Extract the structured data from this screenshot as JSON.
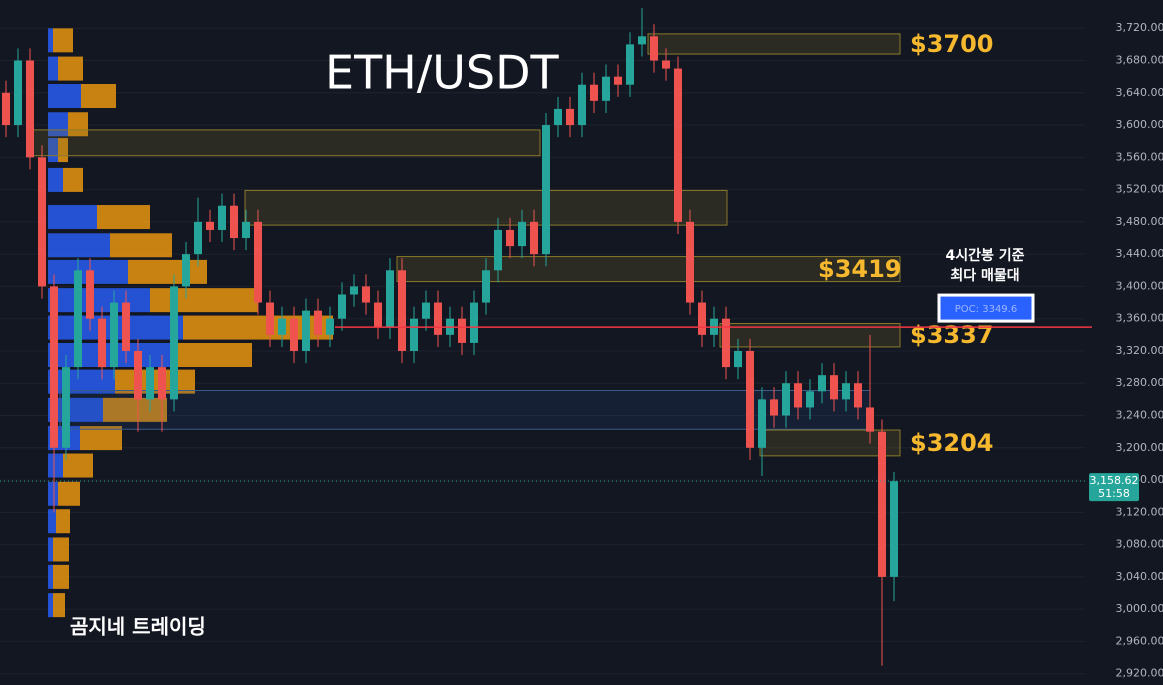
{
  "chart_data": {
    "type": "candlestick",
    "title": "ETH/USDT",
    "watermark": "곰지네 트레이딩",
    "up_color": "#26a69a",
    "down_color": "#ef5350",
    "open": [
      3640,
      3600,
      3680,
      3560,
      3400,
      3200,
      3300,
      3420,
      3360,
      3300,
      3380,
      3320,
      3260,
      3300,
      3260,
      3400,
      3440,
      3480,
      3470,
      3500,
      3460,
      3480,
      3380,
      3340,
      3360,
      3320,
      3370,
      3340,
      3360,
      3390,
      3400,
      3380,
      3350,
      3420,
      3320,
      3360,
      3380,
      3340,
      3360,
      3330,
      3380,
      3420,
      3470,
      3450,
      3480,
      3440,
      3600,
      3620,
      3600,
      3650,
      3630,
      3660,
      3650,
      3700,
      3710,
      3680,
      3670,
      3480,
      3380,
      3340,
      3360,
      3300,
      3320,
      3200,
      3260,
      3240,
      3280,
      3250,
      3270,
      3290,
      3260,
      3280,
      3250,
      3220,
      3040
    ],
    "high": [
      3655,
      3695,
      3695,
      3575,
      3415,
      3315,
      3435,
      3435,
      3375,
      3395,
      3395,
      3335,
      3315,
      3315,
      3415,
      3455,
      3510,
      3495,
      3515,
      3515,
      3495,
      3495,
      3395,
      3375,
      3375,
      3385,
      3385,
      3375,
      3405,
      3415,
      3415,
      3395,
      3435,
      3435,
      3375,
      3395,
      3395,
      3375,
      3375,
      3395,
      3435,
      3485,
      3485,
      3495,
      3495,
      3615,
      3635,
      3635,
      3665,
      3665,
      3675,
      3675,
      3715,
      3745,
      3725,
      3695,
      3685,
      3495,
      3395,
      3375,
      3375,
      3335,
      3335,
      3275,
      3275,
      3295,
      3295,
      3285,
      3305,
      3305,
      3295,
      3295,
      3340,
      3235,
      3170
    ],
    "low": [
      3585,
      3585,
      3545,
      3385,
      3120,
      3185,
      3285,
      3345,
      3285,
      3285,
      3305,
      3220,
      3245,
      3220,
      3245,
      3385,
      3425,
      3455,
      3455,
      3445,
      3445,
      3365,
      3325,
      3325,
      3305,
      3305,
      3325,
      3325,
      3345,
      3375,
      3365,
      3335,
      3335,
      3305,
      3305,
      3345,
      3325,
      3325,
      3315,
      3315,
      3365,
      3405,
      3435,
      3435,
      3425,
      3425,
      3585,
      3585,
      3585,
      3615,
      3615,
      3635,
      3635,
      3685,
      3665,
      3655,
      3465,
      3365,
      3325,
      3325,
      3285,
      3285,
      3185,
      3165,
      3225,
      3225,
      3235,
      3235,
      3255,
      3245,
      3245,
      3235,
      3205,
      2930,
      3010
    ],
    "close": [
      3600,
      3680,
      3560,
      3400,
      3200,
      3300,
      3420,
      3360,
      3300,
      3380,
      3320,
      3260,
      3300,
      3260,
      3400,
      3440,
      3480,
      3470,
      3500,
      3460,
      3480,
      3380,
      3340,
      3360,
      3320,
      3370,
      3340,
      3360,
      3390,
      3400,
      3380,
      3350,
      3420,
      3320,
      3360,
      3380,
      3340,
      3360,
      3330,
      3380,
      3420,
      3470,
      3450,
      3480,
      3440,
      3600,
      3620,
      3600,
      3650,
      3630,
      3660,
      3650,
      3700,
      3710,
      3680,
      3670,
      3480,
      3380,
      3340,
      3360,
      3300,
      3320,
      3200,
      3260,
      3240,
      3280,
      3250,
      3270,
      3290,
      3260,
      3280,
      3250,
      3220,
      3040,
      3158.62
    ],
    "ylim": [
      2906,
      3755
    ],
    "yticks": [
      {
        "value": 2920,
        "label": "2,920.00"
      },
      {
        "value": 2960,
        "label": "2,960.00"
      },
      {
        "value": 3000,
        "label": "3,000.00"
      },
      {
        "value": 3040,
        "label": "3,040.00"
      },
      {
        "value": 3080,
        "label": "3,080.00"
      },
      {
        "value": 3120,
        "label": "3,120.00"
      },
      {
        "value": 3160,
        "label": "3,160.00"
      },
      {
        "value": 3200,
        "label": "3,200.00"
      },
      {
        "value": 3240,
        "label": "3,240.00"
      },
      {
        "value": 3280,
        "label": "3,280.00"
      },
      {
        "value": 3320,
        "label": "3,320.00"
      },
      {
        "value": 3360,
        "label": "3,360.00"
      },
      {
        "value": 3400,
        "label": "3,400.00"
      },
      {
        "value": 3440,
        "label": "3,440.00"
      },
      {
        "value": 3480,
        "label": "3,480.00"
      },
      {
        "value": 3520,
        "label": "3,520.00"
      },
      {
        "value": 3560,
        "label": "3,560.00"
      },
      {
        "value": 3600,
        "label": "3,600.00"
      },
      {
        "value": 3640,
        "label": "3,640.00"
      },
      {
        "value": 3680,
        "label": "3,680.00"
      },
      {
        "value": 3720,
        "label": "3,720.00"
      }
    ],
    "last_price": {
      "value": 3158.62,
      "label": "3,158.62"
    },
    "countdown": "51:58",
    "poc": {
      "value": 3349.6,
      "label": "POC: 3349.6"
    },
    "poc_note": [
      "4시간봉 기준",
      "최다 매물대"
    ],
    "zones": [
      {
        "low": 3688,
        "high": 3713,
        "label": "$3700"
      },
      {
        "low": 3562,
        "high": 3594
      },
      {
        "low": 3476,
        "high": 3519
      },
      {
        "low": 3406,
        "high": 3437,
        "label": "$3419"
      },
      {
        "low": 3325,
        "high": 3354,
        "label": "$3337"
      },
      {
        "low": 3223,
        "high": 3271
      },
      {
        "low": 3190,
        "high": 3222,
        "label": "$3204"
      }
    ],
    "volume_profile": {
      "prices": [
        3705,
        3670,
        3636,
        3601,
        3569,
        3532,
        3486,
        3451,
        3418,
        3383,
        3349,
        3315,
        3282,
        3247,
        3212,
        3178,
        3143,
        3109,
        3074,
        3040,
        3005
      ],
      "buy": [
        5,
        10,
        33,
        20,
        10,
        15,
        49,
        62,
        80,
        102,
        135,
        122,
        67,
        55,
        32,
        15,
        10,
        8,
        5,
        5,
        5
      ],
      "sell": [
        20,
        25,
        35,
        20,
        10,
        20,
        53,
        62,
        79,
        108,
        150,
        82,
        80,
        64,
        42,
        30,
        22,
        14,
        16,
        16,
        12
      ]
    }
  }
}
